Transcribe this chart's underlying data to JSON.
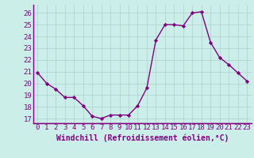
{
  "x": [
    0,
    1,
    2,
    3,
    4,
    5,
    6,
    7,
    8,
    9,
    10,
    11,
    12,
    13,
    14,
    15,
    16,
    17,
    18,
    19,
    20,
    21,
    22,
    23
  ],
  "y": [
    20.9,
    20.0,
    19.5,
    18.8,
    18.8,
    18.1,
    17.2,
    17.0,
    17.3,
    17.3,
    17.3,
    18.1,
    19.6,
    23.7,
    25.0,
    25.0,
    24.9,
    26.0,
    26.1,
    23.5,
    22.2,
    21.6,
    20.9,
    20.2
  ],
  "line_color": "#800080",
  "marker": "D",
  "marker_size": 2.2,
  "bg_color": "#cceee8",
  "grid_color": "#b0cece",
  "xlabel": "Windchill (Refroidissement éolien,°C)",
  "xlabel_fontsize": 7,
  "xlabel_color": "#800080",
  "yticks": [
    17,
    18,
    19,
    20,
    21,
    22,
    23,
    24,
    25,
    26
  ],
  "xticks": [
    0,
    1,
    2,
    3,
    4,
    5,
    6,
    7,
    8,
    9,
    10,
    11,
    12,
    13,
    14,
    15,
    16,
    17,
    18,
    19,
    20,
    21,
    22,
    23
  ],
  "ylim": [
    16.6,
    26.7
  ],
  "xlim": [
    -0.5,
    23.5
  ],
  "tick_fontsize": 6.5,
  "line_width": 1.0,
  "spine_color": "#800080"
}
